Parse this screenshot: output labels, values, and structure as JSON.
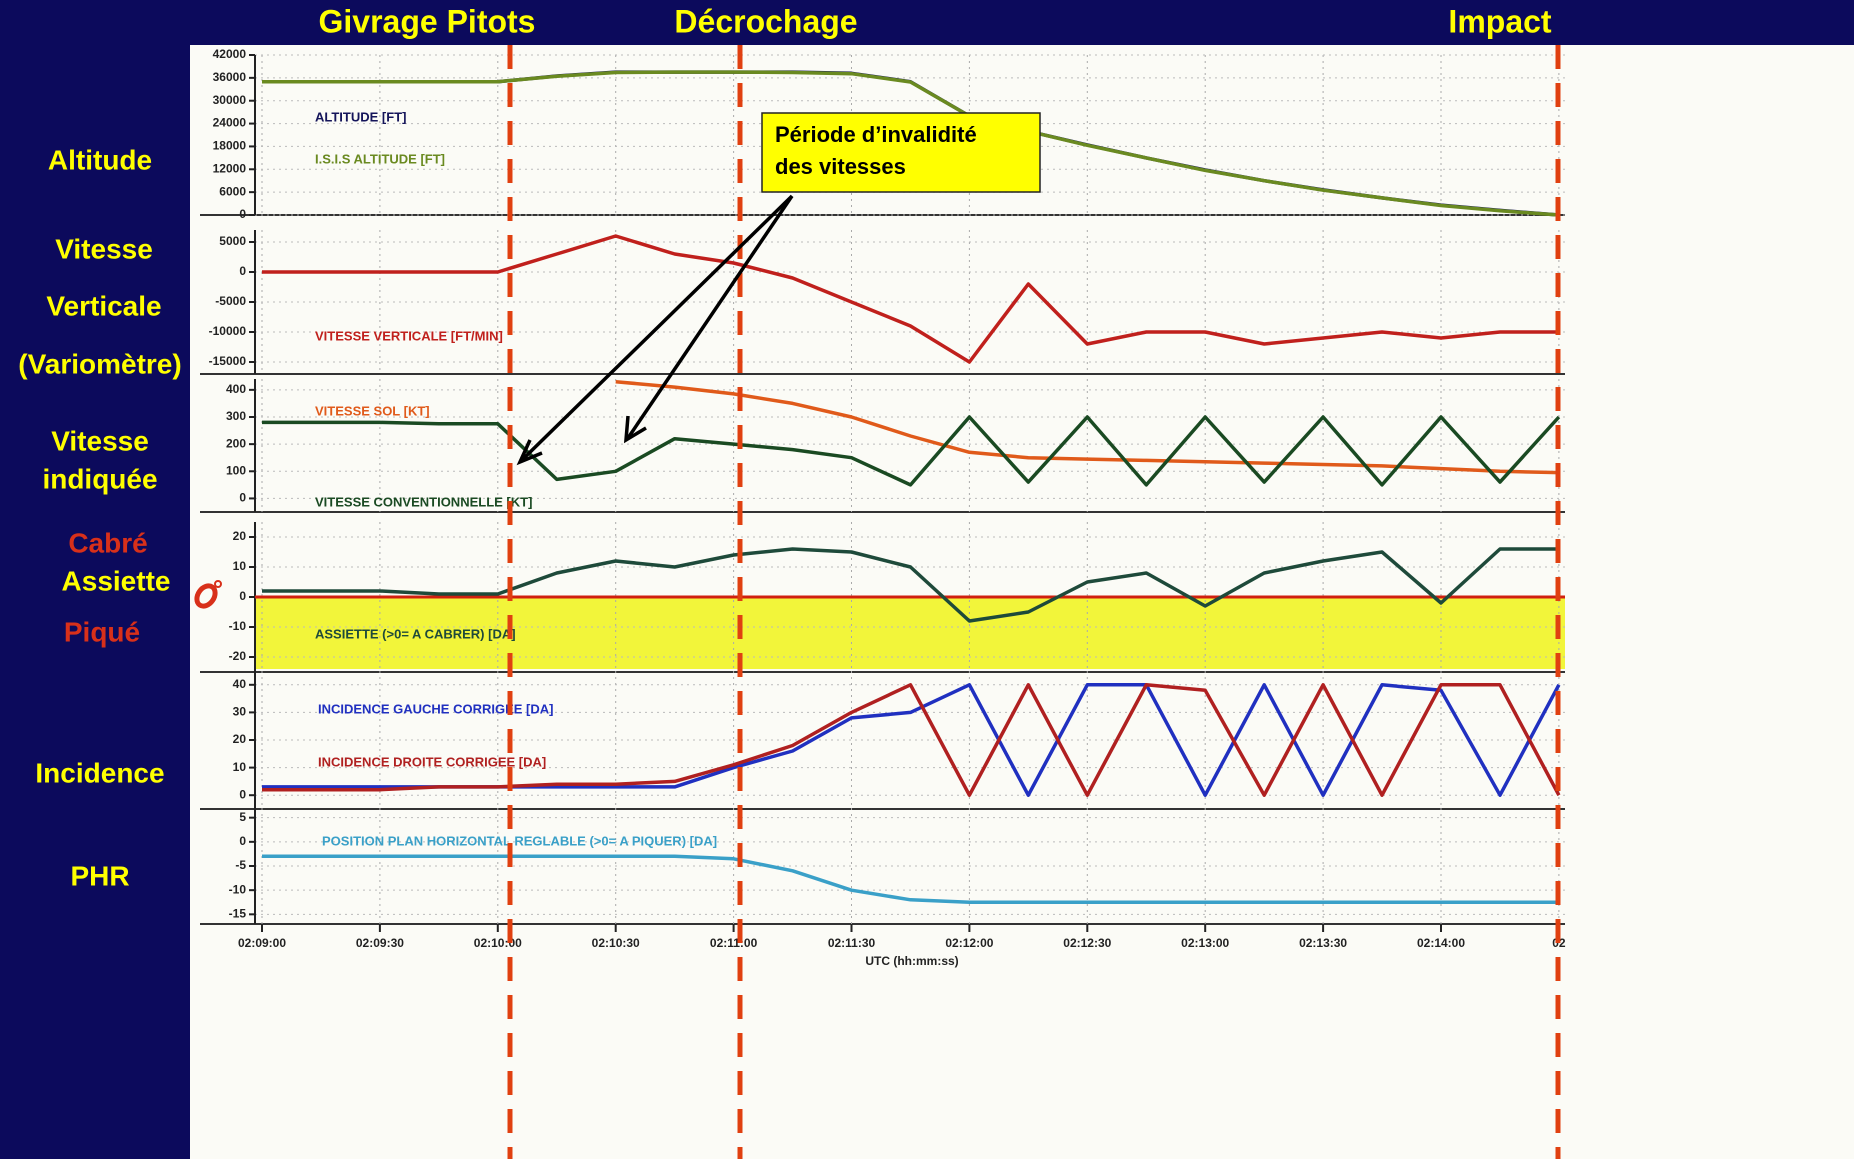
{
  "slide": {
    "events": [
      "Givrage Pitots",
      "Décrochage",
      "Impact"
    ],
    "side_labels": [
      "Altitude",
      "Vitesse",
      "Verticale",
      "(Variomètre)",
      "Vitesse",
      "indiquée",
      "Cabré",
      "Assiette",
      "Piqué",
      "Incidence",
      "PHR"
    ],
    "callout": [
      "Période d’invalidité",
      "des vitesses"
    ]
  },
  "chart_data": [
    {
      "type": "line",
      "grid": true,
      "x": [
        "02:09:00",
        "02:09:15",
        "02:09:30",
        "02:09:45",
        "02:10:00",
        "02:10:15",
        "02:10:30",
        "02:10:45",
        "02:11:00",
        "02:11:15",
        "02:11:30",
        "02:11:45",
        "02:12:00",
        "02:12:15",
        "02:12:30",
        "02:12:45",
        "02:13:00",
        "02:13:15",
        "02:13:30",
        "02:13:45",
        "02:14:00",
        "02:14:15",
        "02:14:30"
      ],
      "ylim": [
        0,
        42000
      ],
      "yticks": [
        0,
        6000,
        12000,
        18000,
        24000,
        30000,
        36000,
        42000
      ],
      "series": [
        {
          "name": "ALTITUDE [FT]",
          "color": "#14145a",
          "values": [
            35000,
            35000,
            35000,
            35000,
            35000,
            36500,
            37500,
            37500,
            37500,
            37500,
            37200,
            35000,
            26000,
            22000,
            18400,
            15000,
            11800,
            9000,
            6600,
            4500,
            2600,
            1200,
            0
          ]
        },
        {
          "name": "I.S.I.S ALTITUDE [FT]",
          "color": "#6a8a20",
          "values": [
            35000,
            35000,
            35000,
            35000,
            35000,
            36400,
            37400,
            37500,
            37500,
            37400,
            37100,
            34900,
            26000,
            22000,
            18300,
            15000,
            11700,
            9000,
            6500,
            4500,
            2500,
            1100,
            0
          ]
        }
      ]
    },
    {
      "type": "line",
      "grid": true,
      "x": [
        "02:09:00",
        "02:09:15",
        "02:09:30",
        "02:09:45",
        "02:10:00",
        "02:10:15",
        "02:10:30",
        "02:10:45",
        "02:11:00",
        "02:11:15",
        "02:11:30",
        "02:11:45",
        "02:12:00",
        "02:12:15",
        "02:12:30",
        "02:12:45",
        "02:13:00",
        "02:13:15",
        "02:13:30",
        "02:13:45",
        "02:14:00",
        "02:14:15",
        "02:14:30"
      ],
      "ylim": [
        -17000,
        7000
      ],
      "yticks": [
        5000,
        0,
        -5000,
        -10000,
        -15000
      ],
      "series": [
        {
          "name": "VITESSE VERTICALE [FT/MIN]",
          "color": "#c0201c",
          "values": [
            0,
            0,
            0,
            0,
            0,
            3000,
            6000,
            3000,
            1500,
            -1000,
            -5000,
            -9000,
            -15000,
            -2000,
            -12000,
            -10000,
            -10000,
            -12000,
            -11000,
            -10000,
            -11000,
            -10000,
            -10000
          ]
        }
      ]
    },
    {
      "type": "line",
      "grid": true,
      "x": [
        "02:09:00",
        "02:09:15",
        "02:09:30",
        "02:09:45",
        "02:10:00",
        "02:10:15",
        "02:10:30",
        "02:10:45",
        "02:11:00",
        "02:11:15",
        "02:11:30",
        "02:11:45",
        "02:12:00",
        "02:12:15",
        "02:12:30",
        "02:12:45",
        "02:13:00",
        "02:13:15",
        "02:13:30",
        "02:13:45",
        "02:14:00",
        "02:14:15",
        "02:14:30"
      ],
      "ylim": [
        -50,
        440
      ],
      "yticks": [
        0,
        100,
        200,
        300,
        400
      ],
      "series": [
        {
          "name": "VITESSE SOL [KT]",
          "color": "#e05a1a",
          "values": [
            null,
            null,
            null,
            null,
            null,
            null,
            430,
            410,
            385,
            350,
            300,
            230,
            170,
            150,
            145,
            140,
            135,
            130,
            125,
            120,
            110,
            100,
            95
          ]
        },
        {
          "name": "VITESSE CONVENTIONNELLE [KT]",
          "color": "#1a4a22",
          "values": [
            280,
            280,
            280,
            275,
            275,
            70,
            100,
            220,
            200,
            180,
            150,
            50,
            300,
            60,
            300,
            50,
            300,
            60,
            300,
            50,
            300,
            60,
            300
          ]
        }
      ]
    },
    {
      "type": "line",
      "grid": true,
      "x": [
        "02:09:00",
        "02:09:15",
        "02:09:30",
        "02:09:45",
        "02:10:00",
        "02:10:15",
        "02:10:30",
        "02:10:45",
        "02:11:00",
        "02:11:15",
        "02:11:30",
        "02:11:45",
        "02:12:00",
        "02:12:15",
        "02:12:30",
        "02:12:45",
        "02:13:00",
        "02:13:15",
        "02:13:30",
        "02:13:45",
        "02:14:00",
        "02:14:15",
        "02:14:30"
      ],
      "ylim": [
        -25,
        25
      ],
      "yticks": [
        20,
        10,
        0,
        -10,
        -20
      ],
      "series": [
        {
          "name": "ASSIETTE (>0= A CABRER) [DA]",
          "color": "#1e4a3a",
          "values": [
            2,
            2,
            2,
            1,
            1,
            8,
            12,
            10,
            14,
            16,
            15,
            10,
            -8,
            -5,
            5,
            8,
            -3,
            8,
            12,
            15,
            -2,
            16,
            16
          ]
        }
      ]
    },
    {
      "type": "line",
      "grid": true,
      "x": [
        "02:09:00",
        "02:09:15",
        "02:09:30",
        "02:09:45",
        "02:10:00",
        "02:10:15",
        "02:10:30",
        "02:10:45",
        "02:11:00",
        "02:11:15",
        "02:11:30",
        "02:11:45",
        "02:12:00",
        "02:12:15",
        "02:12:30",
        "02:12:45",
        "02:13:00",
        "02:13:15",
        "02:13:30",
        "02:13:45",
        "02:14:00",
        "02:14:15",
        "02:14:30"
      ],
      "ylim": [
        -5,
        45
      ],
      "yticks": [
        0,
        10,
        20,
        30,
        40
      ],
      "series": [
        {
          "name": "INCIDENCE GAUCHE CORRIGEE [DA]",
          "color": "#2030c0",
          "values": [
            3,
            3,
            3,
            3,
            3,
            3,
            3,
            3,
            10,
            16,
            28,
            30,
            40,
            0,
            40,
            40,
            0,
            40,
            0,
            40,
            38,
            0,
            40
          ]
        },
        {
          "name": "INCIDENCE DROITE CORRIGEE [DA]",
          "color": "#b02020",
          "values": [
            2,
            2,
            2,
            3,
            3,
            4,
            4,
            5,
            11,
            18,
            30,
            40,
            0,
            40,
            0,
            40,
            38,
            0,
            40,
            0,
            40,
            40,
            0
          ]
        }
      ]
    },
    {
      "type": "line",
      "grid": true,
      "x": [
        "02:09:00",
        "02:09:15",
        "02:09:30",
        "02:09:45",
        "02:10:00",
        "02:10:15",
        "02:10:30",
        "02:10:45",
        "02:11:00",
        "02:11:15",
        "02:11:30",
        "02:11:45",
        "02:12:00",
        "02:12:15",
        "02:12:30",
        "02:12:45",
        "02:13:00",
        "02:13:15",
        "02:13:30",
        "02:13:45",
        "02:14:00",
        "02:14:15",
        "02:14:30"
      ],
      "ylim": [
        -17,
        7
      ],
      "yticks": [
        5,
        0,
        -5,
        -10,
        -15
      ],
      "xticks": [
        "02:09:00",
        "02:09:30",
        "02:10:00",
        "02:10:30",
        "02:11:00",
        "02:11:30",
        "02:12:00",
        "02:12:30",
        "02:13:00",
        "02:13:30",
        "02:14:00",
        {
          "value": "02:14:30",
          "label": "02"
        }
      ],
      "xlabel": "UTC (hh:mm:ss)",
      "series": [
        {
          "name": "POSITION PLAN HORIZONTAL REGLABLE (>0= A PIQUER) [DA]",
          "color": "#3aa0c8",
          "values": [
            -3,
            -3,
            -3,
            -3,
            -3,
            -3,
            -3,
            -3,
            -3.5,
            -6,
            -10,
            -12,
            -12.5,
            -12.5,
            -12.5,
            -12.5,
            -12.5,
            -12.5,
            -12.5,
            -12.5,
            -12.5,
            -12.5,
            -12.5
          ]
        }
      ]
    }
  ]
}
